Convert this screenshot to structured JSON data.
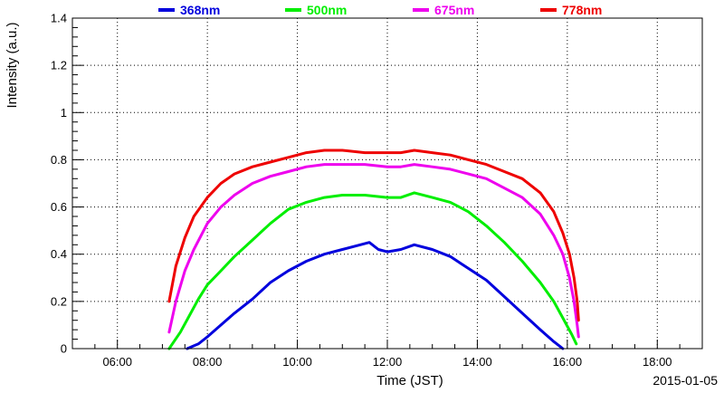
{
  "chart_data": {
    "type": "line",
    "xlabel": "Time (JST)",
    "ylabel": "Intensity (a.u.)",
    "date_label": "2015-01-05",
    "xlim": [
      5.0,
      19.0
    ],
    "ylim": [
      0,
      1.4
    ],
    "x_ticks": [
      {
        "value": 6,
        "label": "06:00"
      },
      {
        "value": 8,
        "label": "08:00"
      },
      {
        "value": 10,
        "label": "10:00"
      },
      {
        "value": 12,
        "label": "12:00"
      },
      {
        "value": 14,
        "label": "14:00"
      },
      {
        "value": 16,
        "label": "16:00"
      },
      {
        "value": 18,
        "label": "18:00"
      }
    ],
    "y_ticks": [
      {
        "value": 0,
        "label": "0"
      },
      {
        "value": 0.2,
        "label": "0.2"
      },
      {
        "value": 0.4,
        "label": "0.4"
      },
      {
        "value": 0.6,
        "label": "0.6"
      },
      {
        "value": 0.8,
        "label": "0.8"
      },
      {
        "value": 1.0,
        "label": "1"
      },
      {
        "value": 1.2,
        "label": "1.2"
      },
      {
        "value": 1.4,
        "label": "1.4"
      }
    ],
    "grid": true,
    "legend_position": "top",
    "series": [
      {
        "name": "368nm",
        "color": "#0000dd",
        "points": [
          [
            7.55,
            0.0
          ],
          [
            7.8,
            0.02
          ],
          [
            8.0,
            0.05
          ],
          [
            8.3,
            0.1
          ],
          [
            8.6,
            0.15
          ],
          [
            9.0,
            0.21
          ],
          [
            9.4,
            0.28
          ],
          [
            9.8,
            0.33
          ],
          [
            10.2,
            0.37
          ],
          [
            10.6,
            0.4
          ],
          [
            11.0,
            0.42
          ],
          [
            11.4,
            0.44
          ],
          [
            11.6,
            0.45
          ],
          [
            11.8,
            0.42
          ],
          [
            12.0,
            0.41
          ],
          [
            12.3,
            0.42
          ],
          [
            12.6,
            0.44
          ],
          [
            13.0,
            0.42
          ],
          [
            13.4,
            0.39
          ],
          [
            13.8,
            0.34
          ],
          [
            14.2,
            0.29
          ],
          [
            14.6,
            0.22
          ],
          [
            15.0,
            0.15
          ],
          [
            15.4,
            0.08
          ],
          [
            15.7,
            0.03
          ],
          [
            15.9,
            0.0
          ]
        ]
      },
      {
        "name": "500nm",
        "color": "#00ee00",
        "points": [
          [
            7.15,
            0.0
          ],
          [
            7.4,
            0.07
          ],
          [
            7.6,
            0.14
          ],
          [
            7.8,
            0.21
          ],
          [
            8.0,
            0.27
          ],
          [
            8.3,
            0.33
          ],
          [
            8.6,
            0.39
          ],
          [
            9.0,
            0.46
          ],
          [
            9.4,
            0.53
          ],
          [
            9.8,
            0.59
          ],
          [
            10.2,
            0.62
          ],
          [
            10.6,
            0.64
          ],
          [
            11.0,
            0.65
          ],
          [
            11.5,
            0.65
          ],
          [
            12.0,
            0.64
          ],
          [
            12.3,
            0.64
          ],
          [
            12.6,
            0.66
          ],
          [
            13.0,
            0.64
          ],
          [
            13.4,
            0.62
          ],
          [
            13.8,
            0.58
          ],
          [
            14.2,
            0.52
          ],
          [
            14.6,
            0.45
          ],
          [
            15.0,
            0.37
          ],
          [
            15.4,
            0.28
          ],
          [
            15.7,
            0.2
          ],
          [
            15.9,
            0.13
          ],
          [
            16.1,
            0.06
          ],
          [
            16.2,
            0.02
          ]
        ]
      },
      {
        "name": "675nm",
        "color": "#ee00ee",
        "points": [
          [
            7.15,
            0.07
          ],
          [
            7.3,
            0.2
          ],
          [
            7.5,
            0.33
          ],
          [
            7.7,
            0.42
          ],
          [
            8.0,
            0.53
          ],
          [
            8.3,
            0.6
          ],
          [
            8.6,
            0.65
          ],
          [
            9.0,
            0.7
          ],
          [
            9.4,
            0.73
          ],
          [
            9.8,
            0.75
          ],
          [
            10.2,
            0.77
          ],
          [
            10.6,
            0.78
          ],
          [
            11.0,
            0.78
          ],
          [
            11.5,
            0.78
          ],
          [
            12.0,
            0.77
          ],
          [
            12.3,
            0.77
          ],
          [
            12.6,
            0.78
          ],
          [
            13.0,
            0.77
          ],
          [
            13.4,
            0.76
          ],
          [
            13.8,
            0.74
          ],
          [
            14.2,
            0.72
          ],
          [
            14.6,
            0.68
          ],
          [
            15.0,
            0.64
          ],
          [
            15.4,
            0.57
          ],
          [
            15.7,
            0.48
          ],
          [
            15.9,
            0.4
          ],
          [
            16.05,
            0.3
          ],
          [
            16.15,
            0.2
          ],
          [
            16.22,
            0.1
          ],
          [
            16.25,
            0.05
          ]
        ]
      },
      {
        "name": "778nm",
        "color": "#ee0000",
        "points": [
          [
            7.15,
            0.2
          ],
          [
            7.3,
            0.35
          ],
          [
            7.5,
            0.47
          ],
          [
            7.7,
            0.56
          ],
          [
            8.0,
            0.64
          ],
          [
            8.3,
            0.7
          ],
          [
            8.6,
            0.74
          ],
          [
            9.0,
            0.77
          ],
          [
            9.4,
            0.79
          ],
          [
            9.8,
            0.81
          ],
          [
            10.2,
            0.83
          ],
          [
            10.6,
            0.84
          ],
          [
            11.0,
            0.84
          ],
          [
            11.5,
            0.83
          ],
          [
            12.0,
            0.83
          ],
          [
            12.3,
            0.83
          ],
          [
            12.6,
            0.84
          ],
          [
            13.0,
            0.83
          ],
          [
            13.4,
            0.82
          ],
          [
            13.8,
            0.8
          ],
          [
            14.2,
            0.78
          ],
          [
            14.6,
            0.75
          ],
          [
            15.0,
            0.72
          ],
          [
            15.4,
            0.66
          ],
          [
            15.7,
            0.58
          ],
          [
            15.9,
            0.49
          ],
          [
            16.05,
            0.4
          ],
          [
            16.15,
            0.3
          ],
          [
            16.22,
            0.2
          ],
          [
            16.25,
            0.12
          ]
        ]
      }
    ]
  }
}
